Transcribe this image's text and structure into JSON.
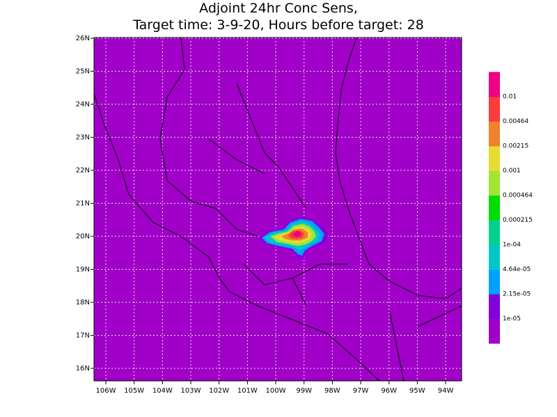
{
  "title": [
    "Adjoint 24hr Conc Sens,",
    "Target time: 3-9-20, Hours before target: 28"
  ],
  "map": {
    "background": "#a000c8",
    "lon_ticks": [
      "106W",
      "105W",
      "104W",
      "103W",
      "102W",
      "101W",
      "100W",
      "99W",
      "98W",
      "97W",
      "96W",
      "95W",
      "94W"
    ],
    "lat_ticks": [
      "16N",
      "17N",
      "18N",
      "19N",
      "20N",
      "21N",
      "22N",
      "23N",
      "24N",
      "25N",
      "26N"
    ]
  },
  "colorbar": {
    "colors": [
      "#a000c8",
      "#8200dc",
      "#00a0ff",
      "#00c8c8",
      "#00d28c",
      "#00dc00",
      "#a0e632",
      "#e6dc32",
      "#f0822a",
      "#fa3c3c",
      "#f00082"
    ],
    "labels": [
      "1e-05",
      "2.15e-05",
      "4.64e-05",
      "1e-04",
      "0.000215",
      "0.000464",
      "0.001",
      "0.00215",
      "0.00464",
      "0.01"
    ]
  }
}
